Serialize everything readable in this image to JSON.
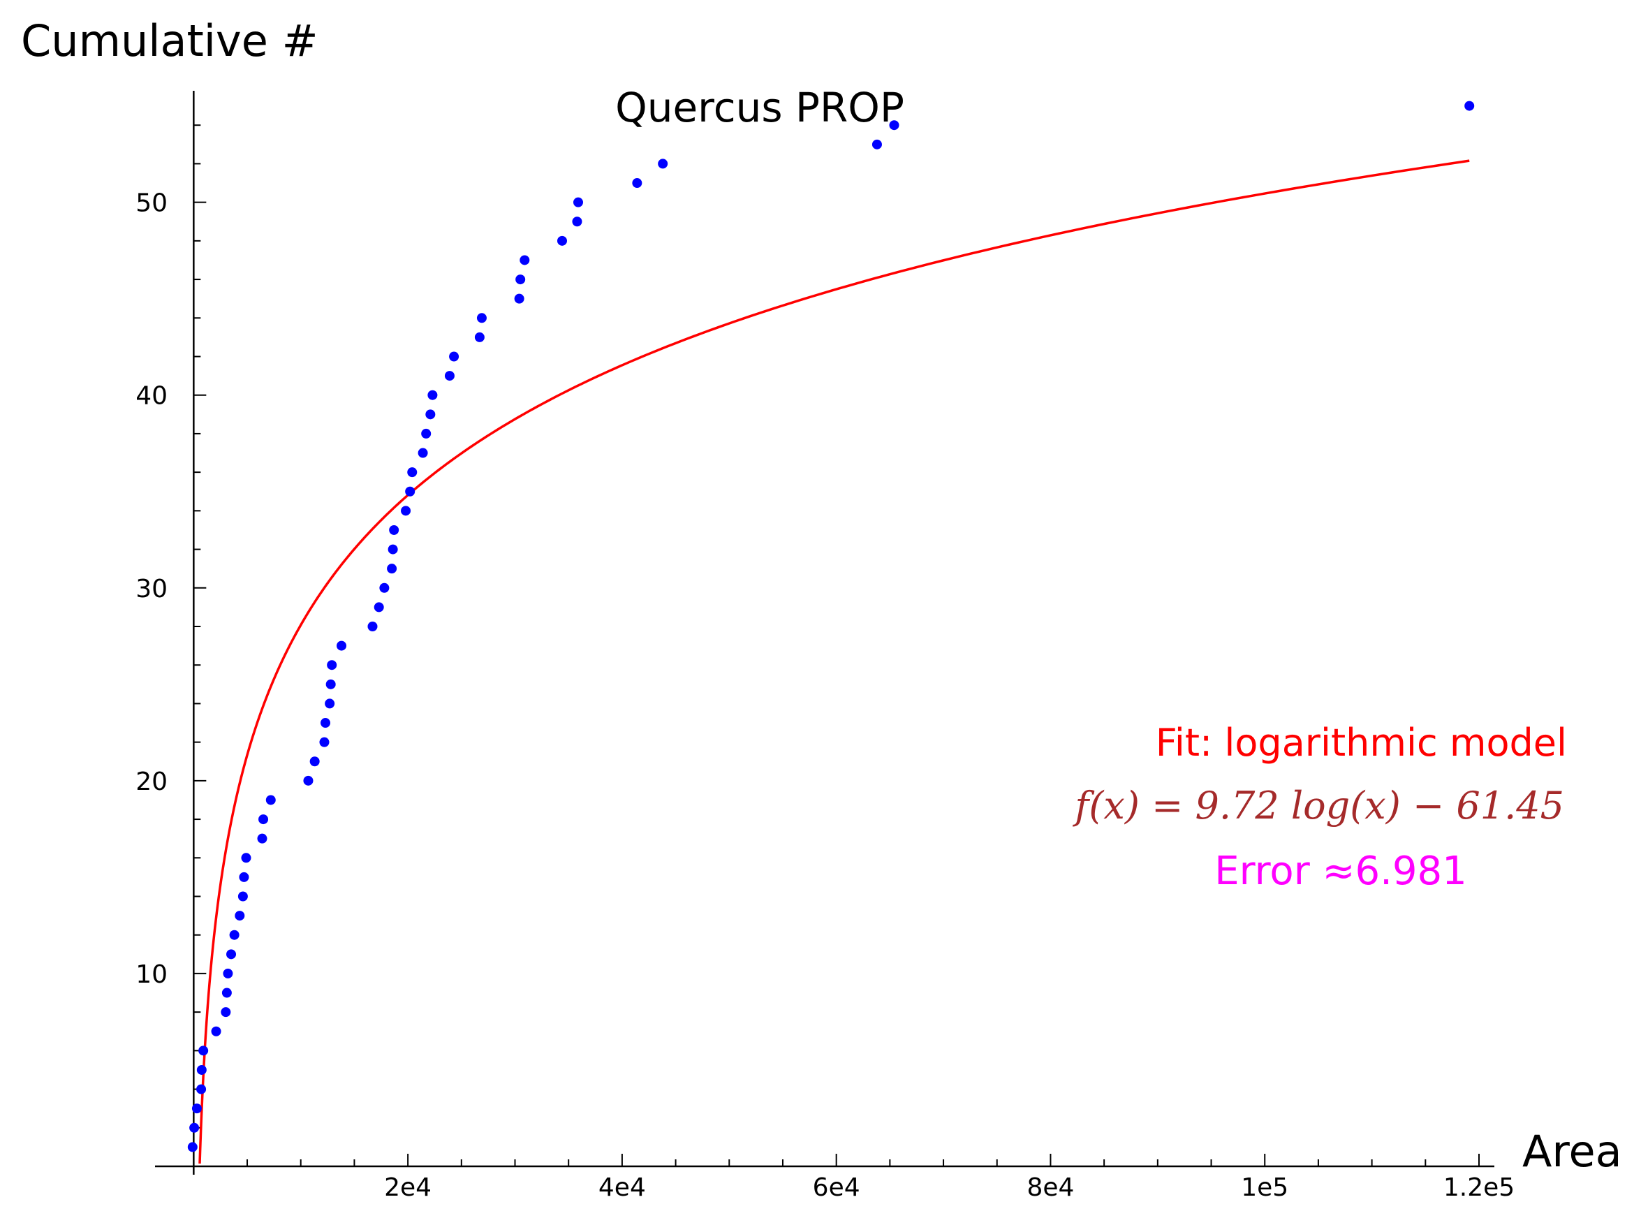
{
  "chart_data": {
    "type": "scatter",
    "title": "Quercus PROP",
    "xlabel": "Area",
    "ylabel": "Cumulative #",
    "xlim": [
      -1000,
      120000
    ],
    "ylim": [
      0,
      56
    ],
    "x_ticks": [
      {
        "value": 20000,
        "label": "2e4"
      },
      {
        "value": 40000,
        "label": "4e4"
      },
      {
        "value": 60000,
        "label": "6e4"
      },
      {
        "value": 80000,
        "label": "8e4"
      },
      {
        "value": 100000,
        "label": "1e5"
      },
      {
        "value": 120000,
        "label": "1.2e5"
      }
    ],
    "y_ticks": [
      {
        "value": 10,
        "label": "10"
      },
      {
        "value": 20,
        "label": "20"
      },
      {
        "value": 30,
        "label": "30"
      },
      {
        "value": 40,
        "label": "40"
      },
      {
        "value": 50,
        "label": "50"
      }
    ],
    "grid": false,
    "points": {
      "color": "#0000ff",
      "x": [
        -100,
        50,
        300,
        700,
        750,
        900,
        2100,
        3000,
        3100,
        3200,
        3500,
        3800,
        4300,
        4600,
        4700,
        4900,
        6400,
        6500,
        7200,
        10700,
        11300,
        12200,
        12300,
        12700,
        12800,
        12900,
        13800,
        16700,
        17300,
        17800,
        18500,
        18600,
        18700,
        19800,
        20200,
        20400,
        21400,
        21700,
        22100,
        22300,
        23900,
        24300,
        26700,
        26900,
        30400,
        30500,
        30900,
        34400,
        35800,
        35900,
        41400,
        43800,
        63800,
        65400,
        119100
      ],
      "y": [
        1,
        2,
        3,
        4,
        5,
        6,
        7,
        8,
        9,
        10,
        11,
        12,
        13,
        14,
        15,
        16,
        17,
        18,
        19,
        20,
        21,
        22,
        23,
        24,
        25,
        26,
        27,
        28,
        29,
        30,
        31,
        32,
        33,
        34,
        35,
        36,
        37,
        38,
        39,
        40,
        41,
        42,
        43,
        44,
        45,
        46,
        47,
        48,
        49,
        50,
        51,
        52,
        53,
        54,
        55
      ]
    },
    "fit": {
      "model": "logarithmic",
      "color": "#ff0000",
      "a": 9.72,
      "b": -61.45,
      "x_start": 565,
      "x_end": 119100
    },
    "annotations": {
      "fit_label": "Fit: logarithmic model",
      "formula": "f(x) = 9.72 log(x) − 61.45",
      "error": "Error ≈6.981"
    }
  }
}
